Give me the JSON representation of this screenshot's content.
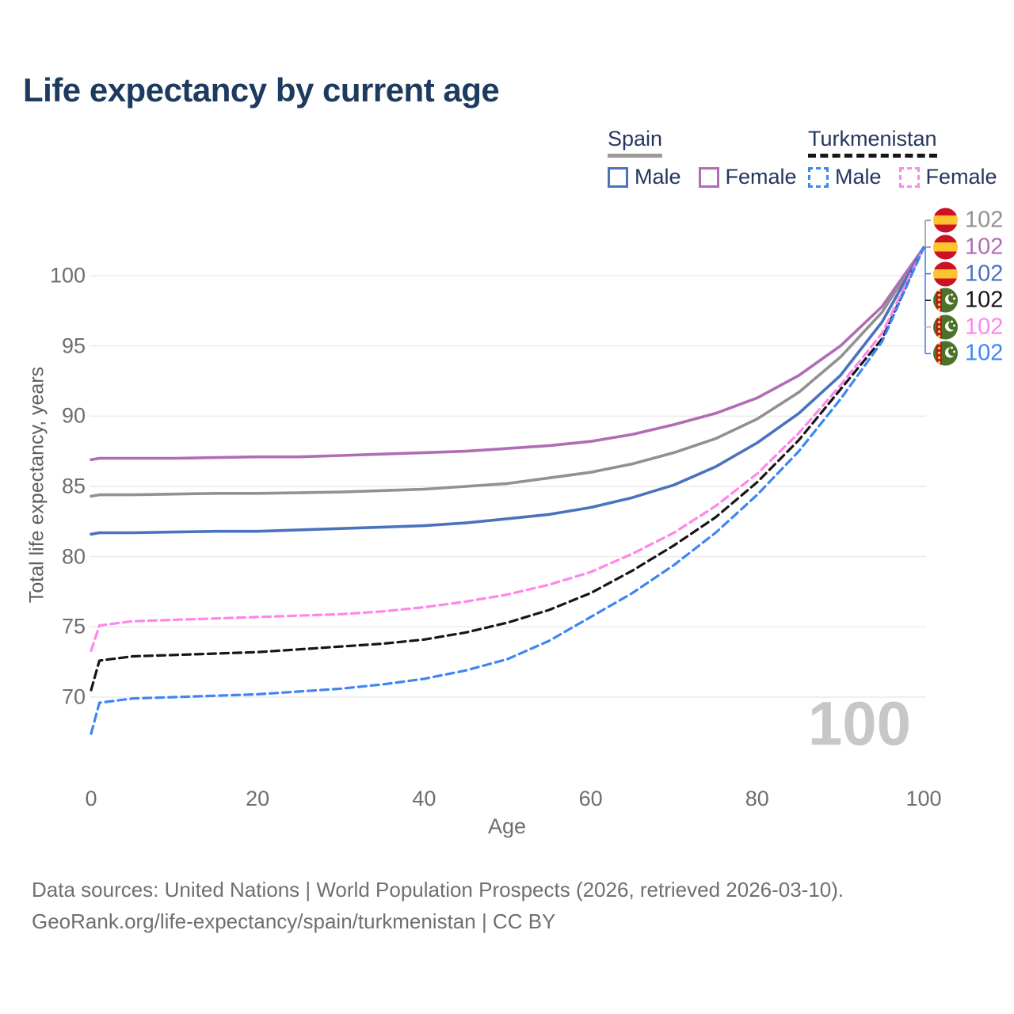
{
  "title": "Life expectancy by current age",
  "legend": {
    "groups": [
      {
        "country": "Spain",
        "dashed": false,
        "line_color": "#9a9a9a",
        "items": [
          {
            "label": "Male",
            "color": "#4a72bd"
          },
          {
            "label": "Female",
            "color": "#b06cb4"
          }
        ]
      },
      {
        "country": "Turkmenistan",
        "dashed": true,
        "line_color": "#161616",
        "items": [
          {
            "label": "Male",
            "color": "#3e86f2"
          },
          {
            "label": "Female",
            "color": "#ff86ea"
          }
        ]
      }
    ]
  },
  "chart_data": {
    "type": "line",
    "title": "Life expectancy by current age",
    "xlabel": "Age",
    "ylabel": "Total life expectancy, years",
    "xlim": [
      0,
      100
    ],
    "ylim": [
      66,
      103
    ],
    "xticks": [
      0,
      20,
      40,
      60,
      80,
      100
    ],
    "yticks": [
      70,
      75,
      80,
      85,
      90,
      95,
      100
    ],
    "grid": "horizontal",
    "legend_position": "top-right",
    "hover_age_label": "100",
    "x": [
      0,
      1,
      5,
      10,
      15,
      20,
      25,
      30,
      35,
      40,
      45,
      50,
      55,
      60,
      65,
      70,
      75,
      80,
      85,
      90,
      95,
      100
    ],
    "series": [
      {
        "name": "Spain",
        "group": "Spain",
        "sex": "Both",
        "color": "#919191",
        "dashed": false,
        "flag": "spain",
        "end_label": "102",
        "values": [
          84.3,
          84.4,
          84.4,
          84.45,
          84.5,
          84.5,
          84.55,
          84.6,
          84.7,
          84.8,
          85.0,
          85.2,
          85.6,
          86.0,
          86.6,
          87.4,
          88.4,
          89.8,
          91.7,
          94.2,
          97.4,
          102
        ]
      },
      {
        "name": "Spain Female",
        "group": "Spain",
        "sex": "Female",
        "color": "#b06cb4",
        "dashed": false,
        "flag": "spain",
        "end_label": "102",
        "values": [
          86.9,
          87.0,
          87.0,
          87.0,
          87.05,
          87.1,
          87.1,
          87.2,
          87.3,
          87.4,
          87.5,
          87.7,
          87.9,
          88.2,
          88.7,
          89.4,
          90.2,
          91.3,
          92.9,
          95.0,
          97.8,
          102
        ]
      },
      {
        "name": "Spain Male",
        "group": "Spain",
        "sex": "Male",
        "color": "#4a72bd",
        "dashed": false,
        "flag": "spain",
        "end_label": "102",
        "values": [
          81.6,
          81.7,
          81.7,
          81.75,
          81.8,
          81.8,
          81.9,
          82.0,
          82.1,
          82.2,
          82.4,
          82.7,
          83.0,
          83.5,
          84.2,
          85.1,
          86.4,
          88.1,
          90.2,
          92.9,
          96.7,
          102
        ]
      },
      {
        "name": "Turkmenistan",
        "group": "Turkmenistan",
        "sex": "Both",
        "color": "#161616",
        "dashed": true,
        "flag": "turkmenistan",
        "end_label": "102",
        "values": [
          70.5,
          72.6,
          72.9,
          73.0,
          73.1,
          73.2,
          73.4,
          73.6,
          73.8,
          74.1,
          74.6,
          75.3,
          76.2,
          77.4,
          79.0,
          80.8,
          82.8,
          85.3,
          88.3,
          91.9,
          95.5,
          102
        ]
      },
      {
        "name": "Turkmenistan Female",
        "group": "Turkmenistan",
        "sex": "Female",
        "color": "#ff86ea",
        "dashed": true,
        "flag": "turkmenistan",
        "end_label": "102",
        "values": [
          73.3,
          75.1,
          75.4,
          75.5,
          75.6,
          75.7,
          75.8,
          75.9,
          76.1,
          76.4,
          76.8,
          77.3,
          78.0,
          78.9,
          80.2,
          81.7,
          83.6,
          85.9,
          88.8,
          92.2,
          95.9,
          102
        ]
      },
      {
        "name": "Turkmenistan Male",
        "group": "Turkmenistan",
        "sex": "Male",
        "color": "#3e86f2",
        "dashed": true,
        "flag": "turkmenistan",
        "end_label": "102",
        "values": [
          67.4,
          69.6,
          69.9,
          70.0,
          70.1,
          70.2,
          70.4,
          70.6,
          70.9,
          71.3,
          71.9,
          72.7,
          74.0,
          75.7,
          77.4,
          79.4,
          81.7,
          84.4,
          87.5,
          91.2,
          95.3,
          102
        ]
      }
    ]
  },
  "footer": {
    "line1": "Data sources: United Nations | World Population Prospects (2026, retrieved 2026-03-10).",
    "line2": "GeoRank.org/life-expectancy/spain/turkmenistan | CC BY"
  }
}
